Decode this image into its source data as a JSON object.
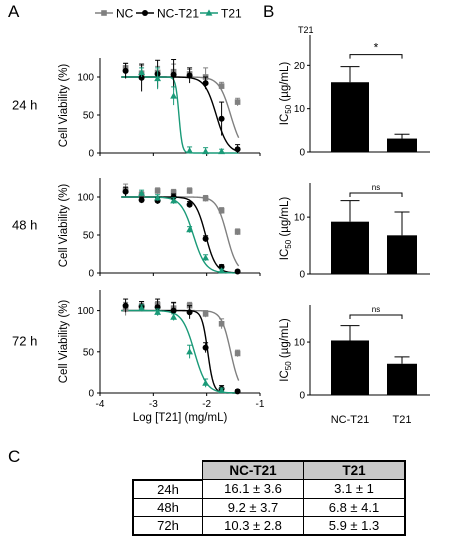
{
  "panel_labels": {
    "a": "A",
    "b": "B",
    "c": "C"
  },
  "legend": [
    {
      "name": "NC",
      "color": "#808080",
      "marker": "square"
    },
    {
      "name": "NC-T21",
      "color": "#000000",
      "marker": "circle"
    },
    {
      "name": "T21",
      "color": "#1a9a78",
      "marker": "triangle"
    }
  ],
  "colors": {
    "nc": "#808080",
    "nct21": "#000000",
    "t21": "#1a9a78"
  },
  "chart_data": [
    {
      "type": "scatter",
      "row_label": "24 h",
      "xlabel": "",
      "ylabel": "Cell Viability (%)",
      "xlim": [
        -4,
        -1
      ],
      "ylim": [
        0,
        125
      ],
      "yticks": [
        0,
        50,
        100
      ],
      "xticks": [],
      "fits": [
        {
          "series": "NC",
          "top": 100,
          "bottom": 0,
          "logIC50": -1.55,
          "hill": -4
        },
        {
          "series": "NC-T21",
          "top": 100,
          "bottom": 0,
          "logIC50": -1.82,
          "hill": -4
        },
        {
          "series": "T21",
          "top": 100,
          "bottom": 0,
          "logIC50": -2.52,
          "hill": -14
        }
      ],
      "series": [
        {
          "name": "NC",
          "points": [
            [
              -3.52,
              112,
              6
            ],
            [
              -3.22,
              105,
              10
            ],
            [
              -2.92,
              106,
              8
            ],
            [
              -2.62,
              107,
              10
            ],
            [
              -2.32,
              104,
              6
            ],
            [
              -2.02,
              100,
              12
            ],
            [
              -1.72,
              88,
              5
            ],
            [
              -1.42,
              67,
              5
            ]
          ]
        },
        {
          "name": "NC-T21",
          "points": [
            [
              -3.52,
              108,
              10
            ],
            [
              -3.22,
              99,
              18
            ],
            [
              -2.92,
              104,
              18
            ],
            [
              -2.62,
              103,
              20
            ],
            [
              -2.32,
              102,
              10
            ],
            [
              -2.02,
              92,
              8
            ],
            [
              -1.72,
              45,
              22
            ],
            [
              -1.42,
              5,
              6
            ]
          ]
        },
        {
          "name": "T21",
          "points": [
            [
              -3.22,
              106,
              6
            ],
            [
              -2.92,
              98,
              14
            ],
            [
              -2.62,
              75,
              12
            ],
            [
              -2.32,
              3,
              5
            ],
            [
              -2.02,
              2,
              5
            ],
            [
              -1.72,
              2,
              3
            ]
          ]
        }
      ]
    },
    {
      "type": "scatter",
      "row_label": "48 h",
      "xlabel": "",
      "ylabel": "Cell Viability (%)",
      "xlim": [
        -4,
        -1
      ],
      "ylim": [
        0,
        125
      ],
      "yticks": [
        0,
        50,
        100
      ],
      "xticks": [],
      "fits": [
        {
          "series": "NC",
          "top": 100,
          "bottom": 0,
          "logIC50": -1.62,
          "hill": -4.5
        },
        {
          "series": "NC-T21",
          "top": 100,
          "bottom": 0,
          "logIC50": -2.02,
          "hill": -4.5
        },
        {
          "series": "T21",
          "top": 100,
          "bottom": 0,
          "logIC50": -2.25,
          "hill": -3.8
        }
      ],
      "series": [
        {
          "name": "NC",
          "points": [
            [
              -3.52,
              109,
              8
            ],
            [
              -3.22,
              103,
              4
            ],
            [
              -2.92,
              108,
              4
            ],
            [
              -2.62,
              106,
              4
            ],
            [
              -2.32,
              108,
              4
            ],
            [
              -2.02,
              98,
              4
            ],
            [
              -1.72,
              82,
              4
            ],
            [
              -1.42,
              54,
              4
            ]
          ]
        },
        {
          "name": "NC-T21",
          "points": [
            [
              -3.52,
              107,
              6
            ],
            [
              -3.22,
              96,
              4
            ],
            [
              -2.92,
              95,
              4
            ],
            [
              -2.62,
              100,
              4
            ],
            [
              -2.32,
              90,
              4
            ],
            [
              -2.02,
              45,
              4
            ],
            [
              -1.72,
              8,
              3
            ],
            [
              -1.42,
              2,
              2
            ]
          ]
        },
        {
          "name": "T21",
          "points": [
            [
              -3.22,
              105,
              4
            ],
            [
              -2.92,
              99,
              4
            ],
            [
              -2.62,
              95,
              4
            ],
            [
              -2.32,
              57,
              4
            ],
            [
              -2.02,
              20,
              4
            ],
            [
              -1.72,
              3,
              2
            ]
          ]
        }
      ]
    },
    {
      "type": "scatter",
      "row_label": "72 h",
      "xlabel": "Log [T21] (mg/mL)",
      "ylabel": "Cell Viability (%)",
      "xlim": [
        -4,
        -1
      ],
      "ylim": [
        0,
        125
      ],
      "yticks": [
        0,
        50,
        100
      ],
      "xticks": [
        -4,
        -3,
        -2,
        -1
      ],
      "fits": [
        {
          "series": "NC",
          "top": 100,
          "bottom": 0,
          "logIC50": -1.55,
          "hill": -5
        },
        {
          "series": "NC-T21",
          "top": 100,
          "bottom": 0,
          "logIC50": -1.98,
          "hill": -8
        },
        {
          "series": "T21",
          "top": 100,
          "bottom": 0,
          "logIC50": -2.23,
          "hill": -3.8
        }
      ],
      "series": [
        {
          "name": "NC",
          "points": [
            [
              -3.52,
              102,
              8
            ],
            [
              -3.22,
              105,
              4
            ],
            [
              -2.92,
              107,
              4
            ],
            [
              -2.62,
              103,
              6
            ],
            [
              -2.32,
              106,
              4
            ],
            [
              -2.02,
              96,
              4
            ],
            [
              -1.72,
              84,
              6
            ],
            [
              -1.42,
              48,
              4
            ]
          ]
        },
        {
          "name": "NC-T21",
          "points": [
            [
              -3.52,
              106,
              8
            ],
            [
              -3.22,
              105,
              6
            ],
            [
              -2.92,
              104,
              10
            ],
            [
              -2.62,
              100,
              10
            ],
            [
              -2.32,
              98,
              8
            ],
            [
              -2.02,
              55,
              6
            ],
            [
              -1.72,
              5,
              4
            ],
            [
              -1.42,
              2,
              2
            ]
          ]
        },
        {
          "name": "T21",
          "points": [
            [
              -3.22,
              103,
              4
            ],
            [
              -2.92,
              98,
              4
            ],
            [
              -2.62,
              92,
              4
            ],
            [
              -2.32,
              50,
              8
            ],
            [
              -2.02,
              12,
              5
            ],
            [
              -1.72,
              3,
              3
            ]
          ]
        }
      ]
    },
    {
      "type": "bar",
      "title": "T21",
      "ylabel": "IC50 (µg/mL)",
      "ylim": [
        0,
        27
      ],
      "yticks": [
        0,
        10,
        20
      ],
      "categories": [
        "NC-T21",
        "T21"
      ],
      "show_categories": false,
      "values": [
        16.1,
        3.1
      ],
      "errors": [
        3.6,
        1
      ],
      "significance": "*"
    },
    {
      "type": "bar",
      "title": "",
      "ylabel": "IC50 (µg/mL)",
      "ylim": [
        0,
        16
      ],
      "yticks": [
        0,
        10
      ],
      "categories": [
        "NC-T21",
        "T21"
      ],
      "show_categories": false,
      "values": [
        9.2,
        6.8
      ],
      "errors": [
        3.7,
        4.1
      ],
      "significance": "ns"
    },
    {
      "type": "bar",
      "title": "",
      "ylabel": "IC50 (µg/mL)",
      "ylim": [
        0,
        17
      ],
      "yticks": [
        0,
        10
      ],
      "categories": [
        "NC-T21",
        "T21"
      ],
      "show_categories": true,
      "values": [
        10.3,
        5.9
      ],
      "errors": [
        2.8,
        1.3
      ],
      "significance": "ns"
    }
  ],
  "table": {
    "headers": [
      "NC-T21",
      "T21"
    ],
    "rows": [
      {
        "label": "24h",
        "values": [
          "16.1 ± 3.6",
          "3.1 ± 1"
        ]
      },
      {
        "label": "48h",
        "values": [
          "9.2 ± 3.7",
          "6.8 ± 4.1"
        ]
      },
      {
        "label": "72h",
        "values": [
          "10.3 ± 2.8",
          "5.9 ± 1.3"
        ]
      }
    ]
  }
}
